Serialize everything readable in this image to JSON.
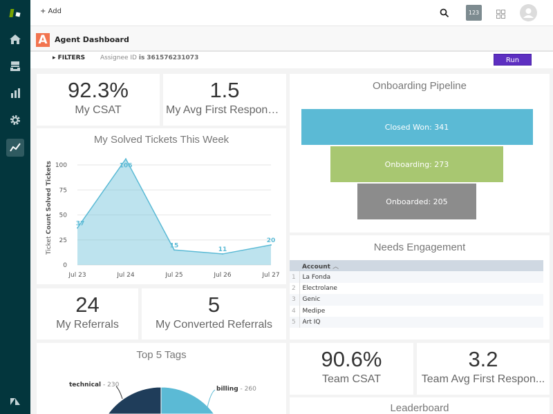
{
  "topbar": {
    "add_label": "+ Add",
    "badge": "123"
  },
  "header": {
    "logo_letter": "A",
    "title": "Agent Dashboard"
  },
  "filters": {
    "label": "FILTERS",
    "field": "Assignee ID",
    "op": "is",
    "value": "361576231073",
    "run_label": "Run"
  },
  "kpis": {
    "my_csat": {
      "value": "92.3%",
      "label": "My CSAT"
    },
    "my_avg_first_response": {
      "value": "1.5",
      "label": "My Avg First Response ..."
    },
    "my_referrals": {
      "value": "24",
      "label": "My Referrals"
    },
    "my_converted_referrals": {
      "value": "5",
      "label": "My Converted Referrals"
    },
    "team_csat": {
      "value": "90.6%",
      "label": "Team CSAT"
    },
    "team_avg_first_response": {
      "value": "3.2",
      "label": "Team Avg First Respon..."
    }
  },
  "leaderboard": {
    "title": "Leaderboard"
  },
  "needs_engagement": {
    "title": "Needs Engagement",
    "column": "Account",
    "rows": [
      "La Fonda",
      "Electrolane",
      "Genic",
      "Medipe",
      "Art IQ"
    ]
  },
  "chart_data": [
    {
      "type": "area",
      "title": "My Solved Tickets This Week",
      "ylabel_prefix": "Ticket",
      "ylabel": "Count Solved Tickets",
      "categories": [
        "Jul 23",
        "Jul 24",
        "Jul 25",
        "Jul 26",
        "Jul 27"
      ],
      "values": [
        37,
        106,
        15,
        11,
        20
      ],
      "yticks": [
        0,
        25,
        50,
        75,
        100
      ],
      "ylim": [
        0,
        100
      ],
      "grid": true,
      "color": "#5bbad5"
    },
    {
      "type": "funnel",
      "title": "Onboarding Pipeline",
      "stages": [
        {
          "label": "Closed Won",
          "value": 341,
          "color": "#5bbad5"
        },
        {
          "label": "Onboarding",
          "value": 273,
          "color": "#a8c771"
        },
        {
          "label": "Onboarded",
          "value": 205,
          "color": "#8c8c8c"
        }
      ]
    },
    {
      "type": "pie",
      "title": "Top 5 Tags",
      "slices": [
        {
          "label": "billing",
          "value": 260,
          "color": "#5bbad5"
        },
        {
          "label": "technical",
          "value": 230,
          "color": "#1f3d5a"
        }
      ]
    }
  ]
}
